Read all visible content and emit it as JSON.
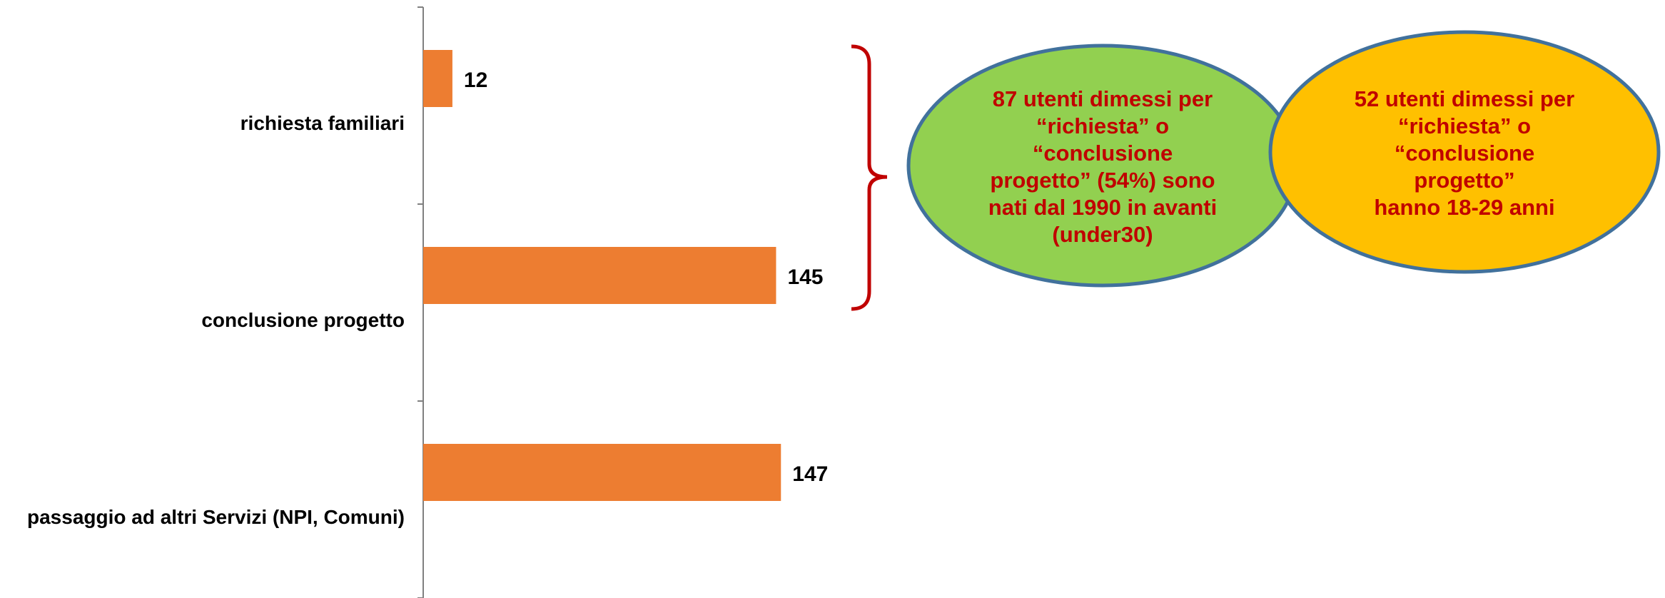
{
  "chart_data": {
    "type": "bar",
    "orientation": "horizontal",
    "categories": [
      "richiesta familiari",
      "conclusione progetto",
      "passaggio ad altri Servizi (NPI, Comuni)"
    ],
    "values": [
      12,
      145,
      147
    ],
    "xlim": [
      0,
      500
    ],
    "grid": false,
    "legend": "none",
    "bar_color": "#ED7D31"
  },
  "annotations": {
    "green_bubble": {
      "lines": [
        "87 utenti dimessi per",
        "“richiesta” o",
        "“conclusione",
        "progetto” (54%) sono",
        "nati dal 1990 in avanti",
        "(under30)"
      ],
      "fill": "#92D050"
    },
    "yellow_bubble": {
      "lines": [
        "52 utenti dimessi per",
        "“richiesta” o",
        "“conclusione",
        "progetto”",
        "hanno 18-29 anni"
      ],
      "fill": "#FFC000"
    },
    "text_color": "#C00000",
    "bubble_border": "#41719C",
    "brace_color": "#C00000"
  }
}
